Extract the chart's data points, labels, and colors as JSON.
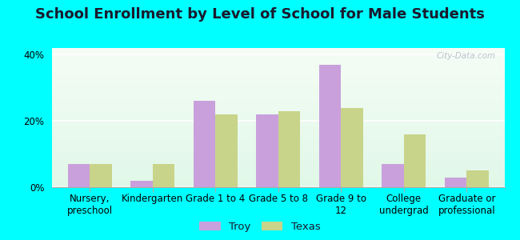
{
  "title": "School Enrollment by Level of School for Male Students",
  "categories": [
    "Nursery,\npreschool",
    "Kindergarten",
    "Grade 1 to 4",
    "Grade 5 to 8",
    "Grade 9 to\n12",
    "College\nundergrad",
    "Graduate or\nprofessional"
  ],
  "troy_values": [
    7,
    2,
    26,
    22,
    37,
    7,
    3
  ],
  "texas_values": [
    7,
    7,
    22,
    23,
    24,
    16,
    5
  ],
  "troy_color": "#c9a0dc",
  "texas_color": "#c8d48a",
  "ylim": [
    0,
    42
  ],
  "yticks": [
    0,
    20,
    40
  ],
  "ytick_labels": [
    "0%",
    "20%",
    "40%"
  ],
  "background_color": "#00ffff",
  "bar_width": 0.35,
  "title_fontsize": 13,
  "tick_fontsize": 8.5,
  "legend_fontsize": 9.5,
  "watermark_text": "City-Data.com"
}
